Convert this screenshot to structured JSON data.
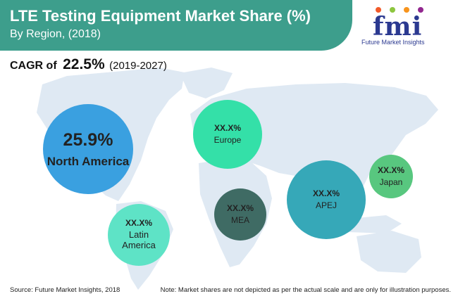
{
  "header": {
    "title": "LTE Testing Equipment Market Share (%)",
    "subtitle": "By Region, (2018)"
  },
  "logo": {
    "wordmark": "fmi",
    "caption": "Future Market Insights",
    "dot_colors": [
      "#f15a29",
      "#8dc63f",
      "#f7941d",
      "#92278f"
    ]
  },
  "cagr": {
    "label": "CAGR of",
    "value": "22.5%",
    "period": "(2019-2027)"
  },
  "chart_data": {
    "type": "bubble-map",
    "series": [
      {
        "region": "North America",
        "value_label": "25.9%",
        "value": 25.9,
        "color": "#3aa0e0"
      },
      {
        "region": "Europe",
        "value_label": "XX.X%",
        "value": null,
        "color": "#34e0a8"
      },
      {
        "region": "Latin America",
        "value_label": "XX.X%",
        "value": null,
        "color": "#5ee3c6"
      },
      {
        "region": "MEA",
        "value_label": "XX.X%",
        "value": null,
        "color": "#3f6b64"
      },
      {
        "region": "APEJ",
        "value_label": "XX.X%",
        "value": null,
        "color": "#36a8b8"
      },
      {
        "region": "Japan",
        "value_label": "XX.X%",
        "value": null,
        "color": "#58c77f"
      }
    ],
    "latam_label_lines": [
      "Latin",
      "America"
    ]
  },
  "colors": {
    "header_band": "#3d9e8c",
    "map_land": "#dfe9f3"
  },
  "footer": {
    "source": "Source: Future Market Insights, 2018",
    "note": "Note: Market shares are not depicted as per the actual scale and are only for illustration purposes."
  }
}
